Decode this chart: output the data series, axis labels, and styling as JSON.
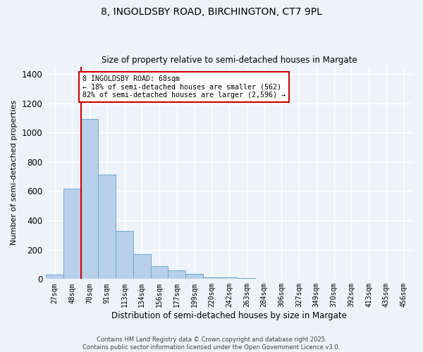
{
  "title1": "8, INGOLDSBY ROAD, BIRCHINGTON, CT7 9PL",
  "title2": "Size of property relative to semi-detached houses in Margate",
  "xlabel": "Distribution of semi-detached houses by size in Margate",
  "ylabel": "Number of semi-detached properties",
  "bar_labels": [
    "27sqm",
    "48sqm",
    "70sqm",
    "91sqm",
    "113sqm",
    "134sqm",
    "156sqm",
    "177sqm",
    "199sqm",
    "220sqm",
    "242sqm",
    "263sqm",
    "284sqm",
    "306sqm",
    "327sqm",
    "349sqm",
    "370sqm",
    "392sqm",
    "413sqm",
    "435sqm",
    "456sqm"
  ],
  "bar_values": [
    30,
    615,
    1090,
    715,
    330,
    170,
    90,
    60,
    35,
    12,
    10,
    5,
    3,
    2,
    2,
    1,
    1,
    1,
    1,
    1,
    1
  ],
  "bar_color": "#b8d0ea",
  "bar_edge_color": "#6aaad4",
  "vline_color": "#cc0000",
  "annotation_text": "8 INGOLDSBY ROAD: 68sqm\n← 18% of semi-detached houses are smaller (562)\n82% of semi-detached houses are larger (2,596) →",
  "annotation_box_color": "#ffffff",
  "annotation_box_edge": "#cc0000",
  "ylim": [
    0,
    1450
  ],
  "yticks": [
    0,
    200,
    400,
    600,
    800,
    1000,
    1200,
    1400
  ],
  "footer": "Contains HM Land Registry data © Crown copyright and database right 2025.\nContains public sector information licensed under the Open Government Licence v3.0.",
  "bg_color": "#eef2f9",
  "plot_bg_color": "#eef2f9"
}
